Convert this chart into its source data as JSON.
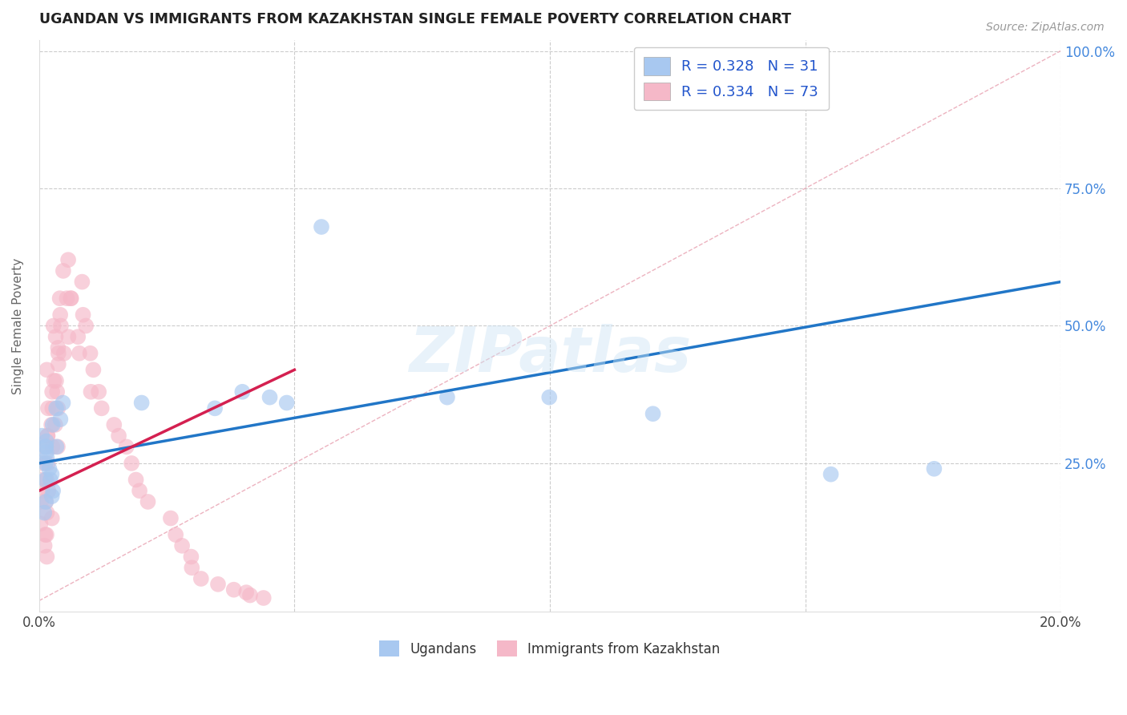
{
  "title": "UGANDAN VS IMMIGRANTS FROM KAZAKHSTAN SINGLE FEMALE POVERTY CORRELATION CHART",
  "source": "Source: ZipAtlas.com",
  "ylabel": "Single Female Poverty",
  "ugandan_label": "Ugandans",
  "kazakh_label": "Immigrants from Kazakhstan",
  "blue_color": "#a8c8f0",
  "pink_color": "#f5b8c8",
  "blue_line_color": "#2176c7",
  "pink_line_color": "#d42050",
  "bg_color": "#ffffff",
  "R_blue": 0.328,
  "N_blue": 31,
  "R_pink": 0.334,
  "N_pink": 73,
  "xlim": [
    0.0,
    0.2
  ],
  "ylim": [
    -0.02,
    1.02
  ],
  "blue_line_x0": 0.0,
  "blue_line_y0": 0.25,
  "blue_line_x1": 0.2,
  "blue_line_y1": 0.58,
  "pink_line_x0": 0.0,
  "pink_line_y0": 0.2,
  "pink_line_x1": 0.05,
  "pink_line_y1": 0.42,
  "ugandan_x": [
    0.001,
    0.002,
    0.001,
    0.003,
    0.002,
    0.001,
    0.002,
    0.001,
    0.003,
    0.002,
    0.001,
    0.002,
    0.003,
    0.001,
    0.002,
    0.004,
    0.003,
    0.005,
    0.002,
    0.001,
    0.02,
    0.035,
    0.04,
    0.055,
    0.08,
    0.1,
    0.12,
    0.155,
    0.175,
    0.045,
    0.048
  ],
  "ugandan_y": [
    0.27,
    0.25,
    0.22,
    0.28,
    0.24,
    0.3,
    0.26,
    0.29,
    0.23,
    0.28,
    0.18,
    0.2,
    0.22,
    0.16,
    0.19,
    0.33,
    0.35,
    0.36,
    0.32,
    0.28,
    0.36,
    0.35,
    0.38,
    0.68,
    0.37,
    0.37,
    0.34,
    0.23,
    0.24,
    0.37,
    0.36
  ],
  "kazakh_x": [
    0.001,
    0.001,
    0.001,
    0.001,
    0.001,
    0.001,
    0.001,
    0.001,
    0.001,
    0.001,
    0.001,
    0.002,
    0.002,
    0.002,
    0.002,
    0.002,
    0.002,
    0.002,
    0.002,
    0.002,
    0.002,
    0.002,
    0.002,
    0.003,
    0.003,
    0.003,
    0.003,
    0.003,
    0.003,
    0.003,
    0.003,
    0.004,
    0.004,
    0.004,
    0.004,
    0.004,
    0.004,
    0.005,
    0.005,
    0.005,
    0.005,
    0.006,
    0.006,
    0.006,
    0.007,
    0.007,
    0.008,
    0.008,
    0.008,
    0.009,
    0.01,
    0.01,
    0.011,
    0.012,
    0.013,
    0.015,
    0.016,
    0.017,
    0.018,
    0.019,
    0.02,
    0.022,
    0.025,
    0.027,
    0.028,
    0.029,
    0.03,
    0.032,
    0.035,
    0.038,
    0.04,
    0.042,
    0.044
  ],
  "kazakh_y": [
    0.28,
    0.3,
    0.25,
    0.22,
    0.2,
    0.18,
    0.16,
    0.14,
    0.12,
    0.1,
    0.08,
    0.42,
    0.38,
    0.35,
    0.32,
    0.3,
    0.28,
    0.25,
    0.22,
    0.2,
    0.18,
    0.15,
    0.12,
    0.5,
    0.46,
    0.43,
    0.4,
    0.38,
    0.35,
    0.32,
    0.28,
    0.55,
    0.52,
    0.48,
    0.45,
    0.4,
    0.35,
    0.6,
    0.55,
    0.5,
    0.45,
    0.62,
    0.55,
    0.48,
    0.55,
    0.48,
    0.58,
    0.52,
    0.45,
    0.5,
    0.45,
    0.38,
    0.42,
    0.38,
    0.35,
    0.32,
    0.3,
    0.28,
    0.25,
    0.22,
    0.2,
    0.18,
    0.15,
    0.12,
    0.1,
    0.08,
    0.06,
    0.04,
    0.03,
    0.02,
    0.015,
    0.01,
    0.005
  ]
}
